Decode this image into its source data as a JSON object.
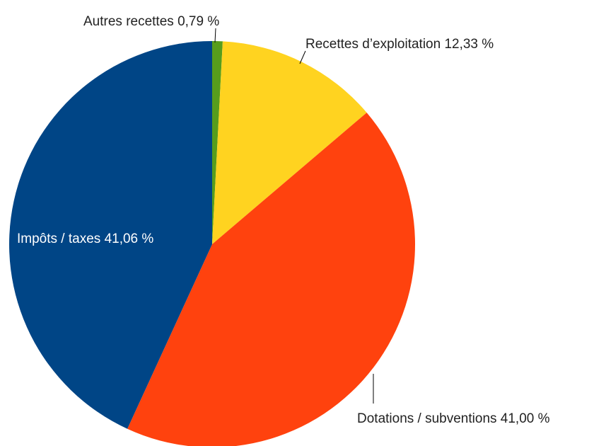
{
  "chart_data": {
    "type": "pie",
    "categories": [
      "Autres recettes",
      "Recettes d’exploitation",
      "Dotations / subventions",
      "Impôts / taxes"
    ],
    "values": [
      0.79,
      12.33,
      41.0,
      41.06
    ],
    "value_labels": [
      "0,79 %",
      "12,33 %",
      "41,00 %",
      "41,06 %"
    ],
    "colors": [
      "#579d1c",
      "#ffd320",
      "#ff420e",
      "#004586"
    ]
  }
}
